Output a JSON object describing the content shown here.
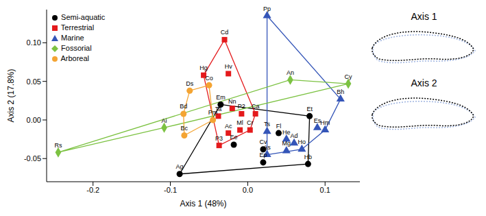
{
  "chart_data": {
    "type": "scatter",
    "x_label": "Axis 1 (48%)",
    "y_label": "Axis 2 (17.8%)",
    "xlim": [
      -0.26,
      0.145
    ],
    "ylim": [
      -0.08,
      0.143
    ],
    "xticks": [
      -0.2,
      -0.1,
      {
        "value": 0,
        "label": "0.0"
      },
      0.1
    ],
    "yticks": [
      -0.05,
      {
        "value": 0,
        "label": "0.00"
      },
      0.05,
      {
        "value": 0.1,
        "label": "0.10"
      }
    ],
    "legend": "top-left",
    "annotations": [
      "Axis 1",
      "Axis 2"
    ],
    "series": [
      {
        "name": "Semi-aquatic",
        "color": "#000000",
        "marker": "circle",
        "points": [
          {
            "label": "Em",
            "x": -0.035,
            "y": 0.02
          },
          {
            "label": "Ag",
            "x": -0.088,
            "y": -0.07
          },
          {
            "label": "Hb",
            "x": 0.078,
            "y": -0.057
          },
          {
            "label": "Et",
            "x": 0.08,
            "y": 0.005
          },
          {
            "label": "Ee",
            "x": -0.018,
            "y": -0.032
          },
          {
            "label": "Cv",
            "x": 0.02,
            "y": -0.038
          },
          {
            "label": "Ep",
            "x": 0.02,
            "y": -0.055
          },
          {
            "label": "Fl",
            "x": 0.04,
            "y": -0.017
          }
        ]
      },
      {
        "name": "Terrestrial",
        "color": "#e41a1c",
        "marker": "square",
        "points": [
          {
            "label": "Cd",
            "x": -0.03,
            "y": 0.104
          },
          {
            "label": "Hg",
            "x": -0.057,
            "y": 0.058
          },
          {
            "label": "Hv",
            "x": -0.025,
            "y": 0.06
          },
          {
            "label": "Ta",
            "x": -0.038,
            "y": 0.005
          },
          {
            "label": "Nn",
            "x": -0.02,
            "y": 0.015
          },
          {
            "label": "P2",
            "x": -0.008,
            "y": 0.008
          },
          {
            "label": "Ca",
            "x": 0.01,
            "y": 0.008
          },
          {
            "label": "Ml",
            "x": -0.01,
            "y": -0.013
          },
          {
            "label": "Ac",
            "x": -0.025,
            "y": -0.017
          },
          {
            "label": "Cr",
            "x": 0.003,
            "y": -0.013
          },
          {
            "label": "P3",
            "x": -0.037,
            "y": -0.033
          }
        ]
      },
      {
        "name": "Marine",
        "color": "#3455b8",
        "marker": "triangle",
        "points": [
          {
            "label": "Pp",
            "x": 0.025,
            "y": 0.135
          },
          {
            "label": "Bh",
            "x": 0.12,
            "y": 0.027
          },
          {
            "label": "Es",
            "x": 0.09,
            "y": -0.01
          },
          {
            "label": "Hm",
            "x": 0.1,
            "y": -0.013
          },
          {
            "label": "He",
            "x": 0.05,
            "y": -0.025
          },
          {
            "label": "Ad",
            "x": 0.06,
            "y": -0.03
          },
          {
            "label": "Mg",
            "x": 0.05,
            "y": -0.04
          },
          {
            "label": "Ho",
            "x": 0.07,
            "y": -0.038
          },
          {
            "label": "Ts",
            "x": 0.025,
            "y": -0.015
          },
          {
            "label": "As",
            "x": 0.025,
            "y": -0.045
          }
        ]
      },
      {
        "name": "Fossorial",
        "color": "#7cc242",
        "marker": "diamond",
        "points": [
          {
            "label": "Rs",
            "x": -0.245,
            "y": -0.042
          },
          {
            "label": "Ai",
            "x": -0.108,
            "y": -0.01
          },
          {
            "label": "An",
            "x": 0.055,
            "y": 0.052
          },
          {
            "label": "Cy",
            "x": 0.13,
            "y": 0.047
          }
        ]
      },
      {
        "name": "Arboreal",
        "color": "#f4a433",
        "marker": "circle",
        "points": [
          {
            "label": "Bc",
            "x": -0.082,
            "y": -0.02
          },
          {
            "label": "Bd",
            "x": -0.083,
            "y": 0.008
          },
          {
            "label": "Ds",
            "x": -0.075,
            "y": 0.038
          },
          {
            "label": "Co",
            "x": -0.05,
            "y": 0.045
          },
          {
            "label": "Pm",
            "x": -0.045,
            "y": 0.0
          }
        ]
      }
    ]
  }
}
